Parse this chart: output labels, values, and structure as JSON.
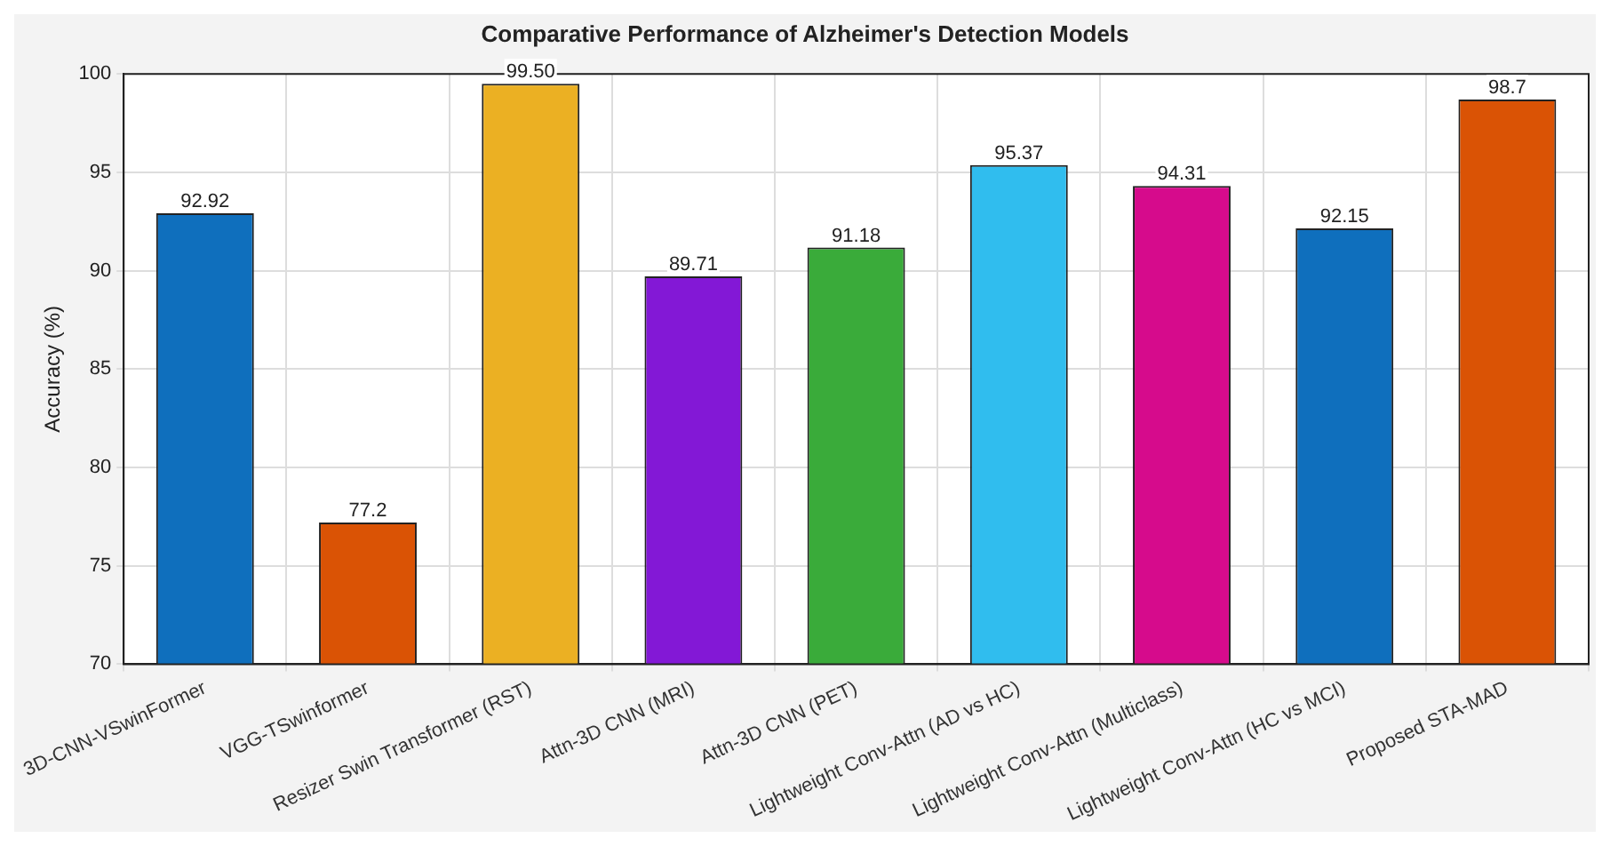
{
  "chart_data": {
    "type": "bar",
    "title": "Comparative Performance of Alzheimer's Detection Models",
    "ylabel": "Accuracy (%)",
    "categories": [
      "3D-CNN-VSwinFormer",
      "VGG-TSwinformer",
      "Resizer Swin Transformer (RST)",
      "Attn-3D CNN (MRI)",
      "Attn-3D CNN (PET)",
      "Lightweight Conv-Attn (AD vs HC)",
      "Lightweight Conv-Attn (Multiclass)",
      "Lightweight Conv-Attn (HC vs MCI)",
      "Proposed STA-MAD"
    ],
    "values": [
      92.92,
      77.2,
      99.5,
      89.71,
      91.18,
      95.37,
      94.31,
      92.15,
      98.7
    ],
    "value_labels": [
      "92.92",
      "77.2",
      "99.50",
      "89.71",
      "91.18",
      "95.37",
      "94.31",
      "92.15",
      "98.7"
    ],
    "colors": [
      "#0f6fbd",
      "#da5305",
      "#ebb023",
      "#8318d6",
      "#3aab3a",
      "#30bdee",
      "#d60b8c",
      "#0f6fbd",
      "#da5305"
    ],
    "ylim": [
      70,
      100
    ],
    "yticks": [
      70,
      75,
      80,
      85,
      90,
      95,
      100
    ],
    "grid": true
  }
}
